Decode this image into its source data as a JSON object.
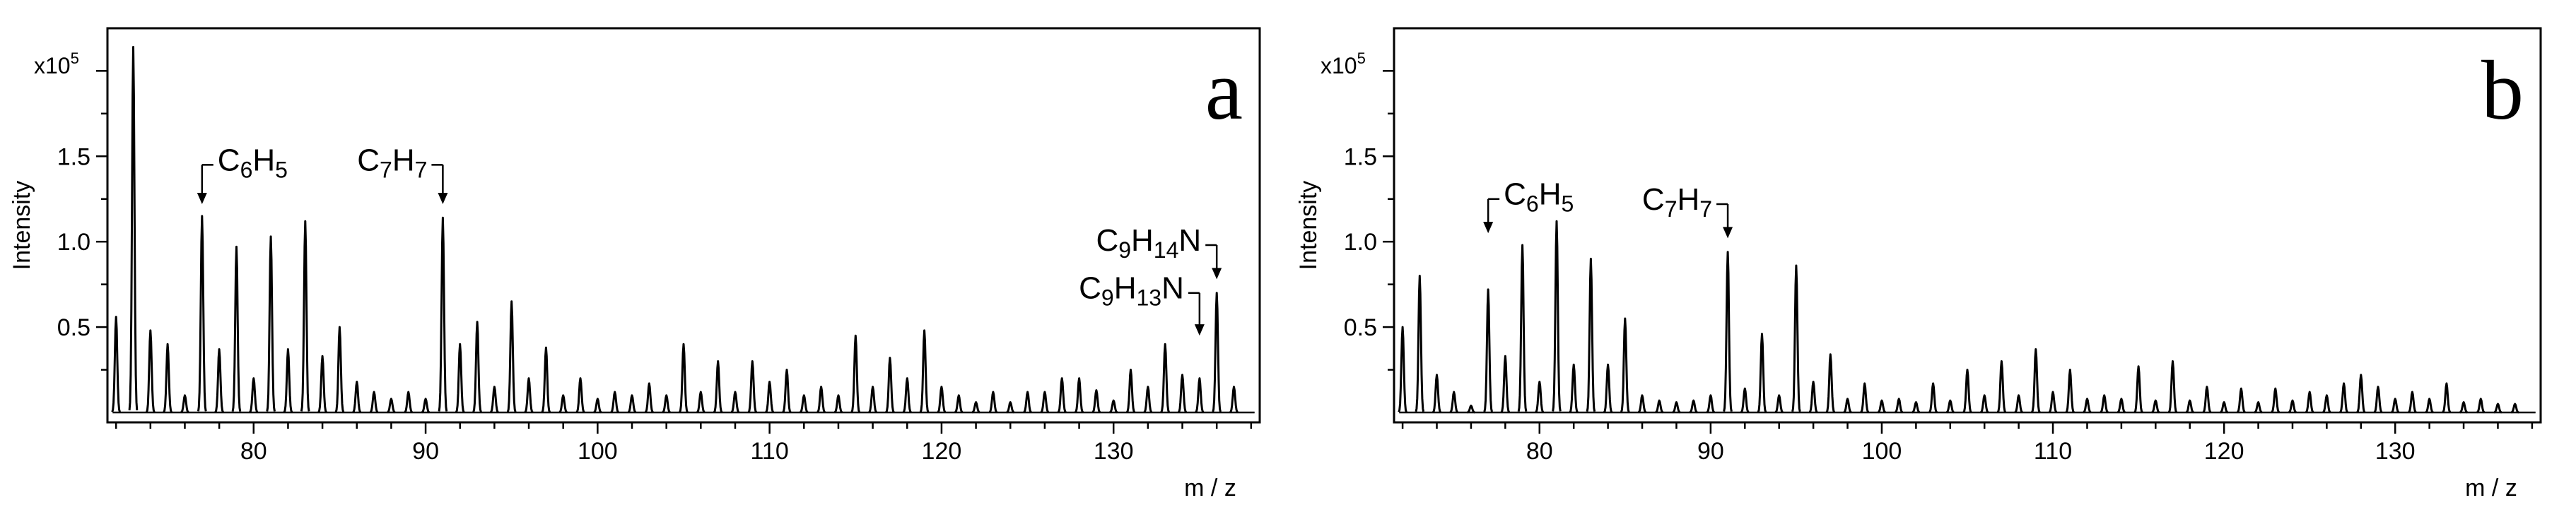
{
  "figure": {
    "background": "#ffffff",
    "line_color": "#000000"
  },
  "chart_data": [
    {
      "panel_label": "a",
      "type": "line",
      "title": "",
      "xlabel": "m / z",
      "ylabel": "Intensity",
      "y_scale_label": "x10",
      "y_scale_exponent": "5",
      "xlim": [
        71.5,
        138.5
      ],
      "ylim": [
        0,
        2.2
      ],
      "grid": false,
      "x_ticks": [
        80,
        90,
        100,
        110,
        120,
        130
      ],
      "y_ticks": [
        0.5,
        1.0,
        1.5
      ],
      "y_tick_labels": [
        "0.5",
        "1.0",
        "1.5"
      ],
      "peaks": [
        {
          "mz": 72,
          "i": 0.56
        },
        {
          "mz": 73,
          "i": 2.14
        },
        {
          "mz": 74,
          "i": 0.48
        },
        {
          "mz": 75,
          "i": 0.4
        },
        {
          "mz": 76,
          "i": 0.1
        },
        {
          "mz": 77,
          "i": 1.15
        },
        {
          "mz": 78,
          "i": 0.37
        },
        {
          "mz": 79,
          "i": 0.97
        },
        {
          "mz": 80,
          "i": 0.2
        },
        {
          "mz": 81,
          "i": 1.03
        },
        {
          "mz": 82,
          "i": 0.37
        },
        {
          "mz": 83,
          "i": 1.12
        },
        {
          "mz": 84,
          "i": 0.33
        },
        {
          "mz": 85,
          "i": 0.5
        },
        {
          "mz": 86,
          "i": 0.18
        },
        {
          "mz": 87,
          "i": 0.12
        },
        {
          "mz": 88,
          "i": 0.08
        },
        {
          "mz": 89,
          "i": 0.12
        },
        {
          "mz": 90,
          "i": 0.08
        },
        {
          "mz": 91,
          "i": 1.14
        },
        {
          "mz": 92,
          "i": 0.4
        },
        {
          "mz": 93,
          "i": 0.53
        },
        {
          "mz": 94,
          "i": 0.15
        },
        {
          "mz": 95,
          "i": 0.65
        },
        {
          "mz": 96,
          "i": 0.2
        },
        {
          "mz": 97,
          "i": 0.38
        },
        {
          "mz": 98,
          "i": 0.1
        },
        {
          "mz": 99,
          "i": 0.2
        },
        {
          "mz": 100,
          "i": 0.08
        },
        {
          "mz": 101,
          "i": 0.12
        },
        {
          "mz": 102,
          "i": 0.1
        },
        {
          "mz": 103,
          "i": 0.17
        },
        {
          "mz": 104,
          "i": 0.1
        },
        {
          "mz": 105,
          "i": 0.4
        },
        {
          "mz": 106,
          "i": 0.12
        },
        {
          "mz": 107,
          "i": 0.3
        },
        {
          "mz": 108,
          "i": 0.12
        },
        {
          "mz": 109,
          "i": 0.3
        },
        {
          "mz": 110,
          "i": 0.18
        },
        {
          "mz": 111,
          "i": 0.25
        },
        {
          "mz": 112,
          "i": 0.1
        },
        {
          "mz": 113,
          "i": 0.15
        },
        {
          "mz": 114,
          "i": 0.1
        },
        {
          "mz": 115,
          "i": 0.45
        },
        {
          "mz": 116,
          "i": 0.15
        },
        {
          "mz": 117,
          "i": 0.32
        },
        {
          "mz": 118,
          "i": 0.2
        },
        {
          "mz": 119,
          "i": 0.48
        },
        {
          "mz": 120,
          "i": 0.15
        },
        {
          "mz": 121,
          "i": 0.1
        },
        {
          "mz": 122,
          "i": 0.06
        },
        {
          "mz": 123,
          "i": 0.12
        },
        {
          "mz": 124,
          "i": 0.06
        },
        {
          "mz": 125,
          "i": 0.12
        },
        {
          "mz": 126,
          "i": 0.12
        },
        {
          "mz": 127,
          "i": 0.2
        },
        {
          "mz": 128,
          "i": 0.2
        },
        {
          "mz": 129,
          "i": 0.13
        },
        {
          "mz": 130,
          "i": 0.07
        },
        {
          "mz": 131,
          "i": 0.25
        },
        {
          "mz": 132,
          "i": 0.15
        },
        {
          "mz": 133,
          "i": 0.4
        },
        {
          "mz": 134,
          "i": 0.22
        },
        {
          "mz": 135,
          "i": 0.2
        },
        {
          "mz": 136,
          "i": 0.7
        },
        {
          "mz": 137,
          "i": 0.15
        }
      ],
      "annotations": [
        {
          "base": "C",
          "sub1": "6",
          "mid": "H",
          "sub2": "5",
          "tail": "",
          "mz": 77,
          "level": 1.45,
          "arrow_to": 1.22,
          "align": "left"
        },
        {
          "base": "C",
          "sub1": "7",
          "mid": "H",
          "sub2": "7",
          "tail": "",
          "mz": 91,
          "level": 1.45,
          "arrow_to": 1.22,
          "align": "right"
        },
        {
          "base": "C",
          "sub1": "9",
          "mid": "H",
          "sub2": "14",
          "tail": "N",
          "mz": 136,
          "level": 0.98,
          "arrow_to": 0.78,
          "align": "right"
        },
        {
          "base": "C",
          "sub1": "9",
          "mid": "H",
          "sub2": "13",
          "tail": "N",
          "mz": 135,
          "level": 0.7,
          "arrow_to": 0.45,
          "align": "right"
        }
      ]
    },
    {
      "panel_label": "b",
      "type": "line",
      "title": "",
      "xlabel": "m / z",
      "ylabel": "Intensity",
      "y_scale_label": "x10",
      "y_scale_exponent": "5",
      "xlim": [
        71.5,
        138.5
      ],
      "ylim": [
        0,
        2.2
      ],
      "grid": false,
      "x_ticks": [
        80,
        90,
        100,
        110,
        120,
        130
      ],
      "y_ticks": [
        0.5,
        1.0,
        1.5
      ],
      "y_tick_labels": [
        "0.5",
        "1.0",
        "1.5"
      ],
      "peaks": [
        {
          "mz": 72,
          "i": 0.5
        },
        {
          "mz": 73,
          "i": 0.8
        },
        {
          "mz": 74,
          "i": 0.22
        },
        {
          "mz": 75,
          "i": 0.12
        },
        {
          "mz": 76,
          "i": 0.04
        },
        {
          "mz": 77,
          "i": 0.72
        },
        {
          "mz": 78,
          "i": 0.33
        },
        {
          "mz": 79,
          "i": 0.98
        },
        {
          "mz": 80,
          "i": 0.18
        },
        {
          "mz": 81,
          "i": 1.12
        },
        {
          "mz": 82,
          "i": 0.28
        },
        {
          "mz": 83,
          "i": 0.9
        },
        {
          "mz": 84,
          "i": 0.28
        },
        {
          "mz": 85,
          "i": 0.55
        },
        {
          "mz": 86,
          "i": 0.1
        },
        {
          "mz": 87,
          "i": 0.07
        },
        {
          "mz": 88,
          "i": 0.06
        },
        {
          "mz": 89,
          "i": 0.07
        },
        {
          "mz": 90,
          "i": 0.1
        },
        {
          "mz": 91,
          "i": 0.94
        },
        {
          "mz": 92,
          "i": 0.14
        },
        {
          "mz": 93,
          "i": 0.46
        },
        {
          "mz": 94,
          "i": 0.1
        },
        {
          "mz": 95,
          "i": 0.86
        },
        {
          "mz": 96,
          "i": 0.18
        },
        {
          "mz": 97,
          "i": 0.34
        },
        {
          "mz": 98,
          "i": 0.08
        },
        {
          "mz": 99,
          "i": 0.17
        },
        {
          "mz": 100,
          "i": 0.07
        },
        {
          "mz": 101,
          "i": 0.08
        },
        {
          "mz": 102,
          "i": 0.06
        },
        {
          "mz": 103,
          "i": 0.17
        },
        {
          "mz": 104,
          "i": 0.07
        },
        {
          "mz": 105,
          "i": 0.25
        },
        {
          "mz": 106,
          "i": 0.1
        },
        {
          "mz": 107,
          "i": 0.3
        },
        {
          "mz": 108,
          "i": 0.1
        },
        {
          "mz": 109,
          "i": 0.37
        },
        {
          "mz": 110,
          "i": 0.12
        },
        {
          "mz": 111,
          "i": 0.25
        },
        {
          "mz": 112,
          "i": 0.08
        },
        {
          "mz": 113,
          "i": 0.1
        },
        {
          "mz": 114,
          "i": 0.08
        },
        {
          "mz": 115,
          "i": 0.27
        },
        {
          "mz": 116,
          "i": 0.07
        },
        {
          "mz": 117,
          "i": 0.3
        },
        {
          "mz": 118,
          "i": 0.07
        },
        {
          "mz": 119,
          "i": 0.15
        },
        {
          "mz": 120,
          "i": 0.06
        },
        {
          "mz": 121,
          "i": 0.14
        },
        {
          "mz": 122,
          "i": 0.06
        },
        {
          "mz": 123,
          "i": 0.14
        },
        {
          "mz": 124,
          "i": 0.07
        },
        {
          "mz": 125,
          "i": 0.12
        },
        {
          "mz": 126,
          "i": 0.1
        },
        {
          "mz": 127,
          "i": 0.17
        },
        {
          "mz": 128,
          "i": 0.22
        },
        {
          "mz": 129,
          "i": 0.15
        },
        {
          "mz": 130,
          "i": 0.08
        },
        {
          "mz": 131,
          "i": 0.12
        },
        {
          "mz": 132,
          "i": 0.08
        },
        {
          "mz": 133,
          "i": 0.17
        },
        {
          "mz": 134,
          "i": 0.06
        },
        {
          "mz": 135,
          "i": 0.08
        },
        {
          "mz": 136,
          "i": 0.05
        },
        {
          "mz": 137,
          "i": 0.05
        }
      ],
      "annotations": [
        {
          "base": "C",
          "sub1": "6",
          "mid": "H",
          "sub2": "5",
          "tail": "",
          "mz": 77,
          "level": 1.25,
          "arrow_to": 1.05,
          "align": "left"
        },
        {
          "base": "C",
          "sub1": "7",
          "mid": "H",
          "sub2": "7",
          "tail": "",
          "mz": 91,
          "level": 1.22,
          "arrow_to": 1.02,
          "align": "right"
        }
      ]
    }
  ]
}
